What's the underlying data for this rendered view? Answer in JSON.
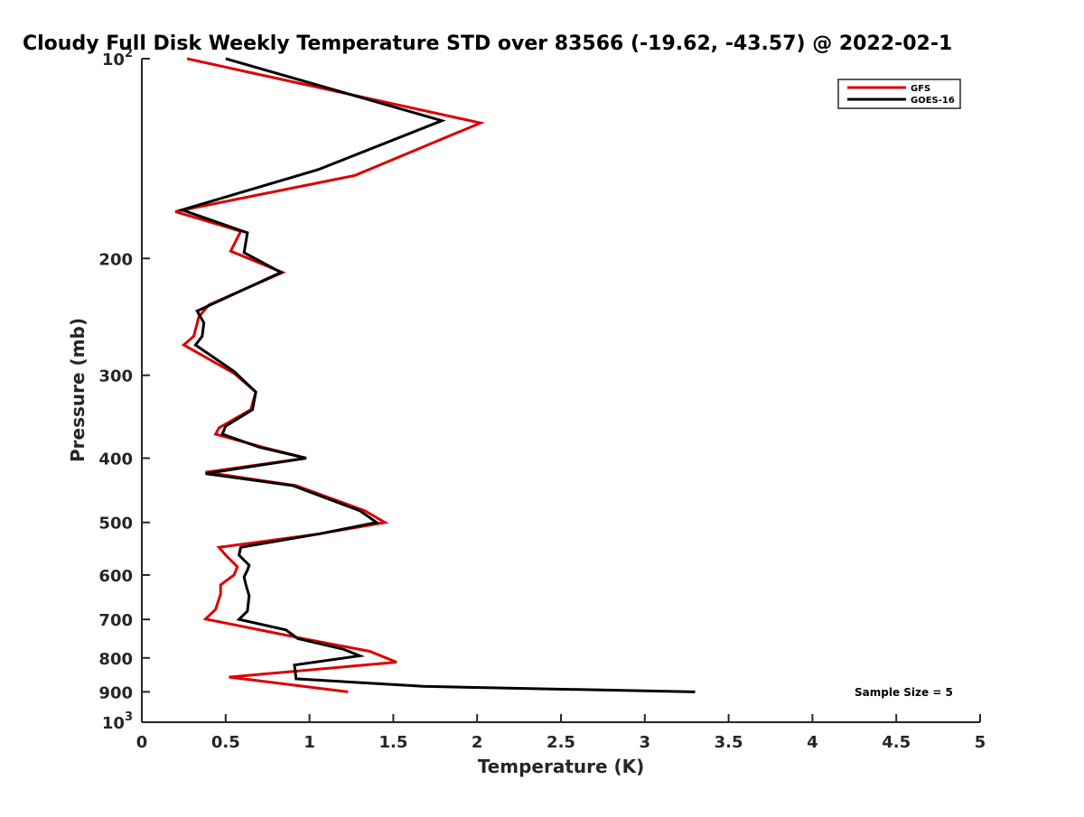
{
  "chart_data": {
    "type": "line",
    "title": "Cloudy Full Disk Weekly Temperature STD over 83566 (-19.62, -43.57) @ 2022-02-1",
    "xlabel": "Temperature (K)",
    "ylabel": "Pressure (mb)",
    "xlim": [
      0,
      5
    ],
    "ylim": [
      100,
      1000
    ],
    "y_scale": "log",
    "y_reversed": true,
    "grid": false,
    "legend_position": "top-right",
    "x_ticks": [
      0,
      0.5,
      1,
      1.5,
      2,
      2.5,
      3,
      3.5,
      4,
      4.5,
      5
    ],
    "x_tick_labels": [
      "0",
      "0.5",
      "1",
      "1.5",
      "2",
      "2.5",
      "3",
      "3.5",
      "4",
      "4.5",
      "5"
    ],
    "y_ticks": [
      {
        "value": 100,
        "base": "10",
        "exp": "2"
      },
      {
        "value": 200,
        "label": "200"
      },
      {
        "value": 300,
        "label": "300"
      },
      {
        "value": 400,
        "label": "400"
      },
      {
        "value": 500,
        "label": "500"
      },
      {
        "value": 600,
        "label": "600"
      },
      {
        "value": 700,
        "label": "700"
      },
      {
        "value": 800,
        "label": "800"
      },
      {
        "value": 900,
        "label": "900"
      },
      {
        "value": 1000,
        "base": "10",
        "exp": "3"
      }
    ],
    "series": [
      {
        "name": "GFS",
        "color": "#dd0000",
        "x": [
          0.27,
          2.02,
          1.27,
          0.2,
          0.59,
          0.53,
          0.84,
          0.4,
          0.34,
          0.31,
          0.25,
          0.55,
          0.68,
          0.65,
          0.46,
          0.44,
          0.72,
          0.98,
          0.38,
          0.92,
          1.33,
          1.45,
          1.06,
          0.46,
          0.5,
          0.57,
          0.55,
          0.47,
          0.47,
          0.44,
          0.38,
          0.75,
          0.96,
          1.36,
          1.52,
          0.52,
          1.23
        ],
        "y": [
          100,
          125,
          150,
          170,
          182,
          195,
          210,
          235,
          245,
          262,
          270,
          298,
          318,
          338,
          360,
          368,
          385,
          400,
          420,
          440,
          480,
          500,
          520,
          545,
          560,
          583,
          600,
          621,
          641,
          676,
          699,
          730,
          748,
          782,
          812,
          855,
          900
        ]
      },
      {
        "name": "GOES-16",
        "color": "#000000",
        "x": [
          0.5,
          1.79,
          1.05,
          0.24,
          0.63,
          0.61,
          0.83,
          0.33,
          0.37,
          0.36,
          0.32,
          0.55,
          0.68,
          0.66,
          0.5,
          0.48,
          0.7,
          0.98,
          0.38,
          0.9,
          1.3,
          1.4,
          1.06,
          0.59,
          0.58,
          0.64,
          0.63,
          0.61,
          0.62,
          0.64,
          0.63,
          0.58,
          0.86,
          0.93,
          1.2,
          1.3,
          0.91,
          0.92,
          1.68,
          3.3
        ],
        "y": [
          100,
          124,
          147,
          169,
          183,
          196,
          210,
          240,
          250,
          262,
          270,
          296,
          318,
          338,
          358,
          368,
          385,
          400,
          422,
          440,
          480,
          500,
          520,
          545,
          560,
          580,
          590,
          604,
          620,
          645,
          680,
          700,
          726,
          748,
          776,
          794,
          820,
          860,
          883,
          900
        ]
      }
    ],
    "legend": [
      {
        "name": "GFS",
        "color": "#dd0000"
      },
      {
        "name": "GOES-16",
        "color": "#000000"
      }
    ],
    "annotations": [
      "Sample Size = 5"
    ]
  }
}
